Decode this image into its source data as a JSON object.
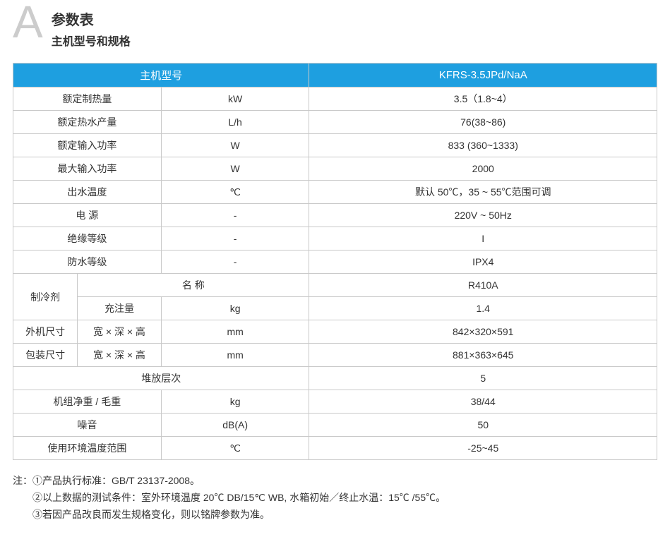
{
  "header": {
    "letter": "A",
    "title": "参数表",
    "subtitle": "主机型号和规格"
  },
  "table": {
    "head_label": "主机型号",
    "head_value": "KFRS-3.5JPd/NaA",
    "rows": {
      "r0": {
        "label": "额定制热量",
        "unit": "kW",
        "value": "3.5（1.8~4）"
      },
      "r1": {
        "label": "额定热水产量",
        "unit": "L/h",
        "value": "76(38~86)"
      },
      "r2": {
        "label": "额定输入功率",
        "unit": "W",
        "value": "833 (360~1333)"
      },
      "r3": {
        "label": "最大输入功率",
        "unit": "W",
        "value": "2000"
      },
      "r4": {
        "label": "出水温度",
        "unit": "℃",
        "value": "默认 50℃，35 ~ 55℃范围可调"
      },
      "r5": {
        "label": "电 源",
        "unit": "-",
        "value": "220V ~ 50Hz"
      },
      "r6": {
        "label": "绝缘等级",
        "unit": "-",
        "value": "I"
      },
      "r7": {
        "label": "防水等级",
        "unit": "-",
        "value": "IPX4"
      },
      "r8a": {
        "group": "制冷剂",
        "label": "名 称",
        "value": "R410A"
      },
      "r8b": {
        "label": "充注量",
        "unit": "kg",
        "value": "1.4"
      },
      "r9": {
        "group": "外机尺寸",
        "label": "宽 × 深 × 高",
        "unit": "mm",
        "value": "842×320×591"
      },
      "r10": {
        "group": "包装尺寸",
        "label": "宽 × 深 × 高",
        "unit": "mm",
        "value": "881×363×645"
      },
      "r11": {
        "label": "堆放层次",
        "value": "5"
      },
      "r12": {
        "label": "机组净重 / 毛重",
        "unit": "kg",
        "value": "38/44"
      },
      "r13": {
        "label": "噪音",
        "unit": "dB(A)",
        "value": "50"
      },
      "r14": {
        "label": "使用环境温度范围",
        "unit": "℃",
        "value": "-25~45"
      }
    }
  },
  "notes": {
    "prefix": "注：",
    "n1": "①产品执行标准：GB/T 23137-2008。",
    "n2": "②以上数据的测试条件：室外环境温度 20℃ DB/15℃ WB, 水箱初始／终止水温：15℃ /55℃。",
    "n3": "③若因产品改良而发生规格变化，则以铭牌参数为准。"
  },
  "style": {
    "header_bg": "#1e9fe0",
    "header_fg": "#ffffff",
    "border_color": "#c9c9c9",
    "big_a_color": "#cccccc",
    "text_color": "#333333",
    "col_widths_pct": [
      10,
      13,
      23,
      54
    ],
    "font_size_body": 14,
    "font_size_title": 20,
    "font_size_subtitle": 16,
    "font_size_bigA": 64
  }
}
